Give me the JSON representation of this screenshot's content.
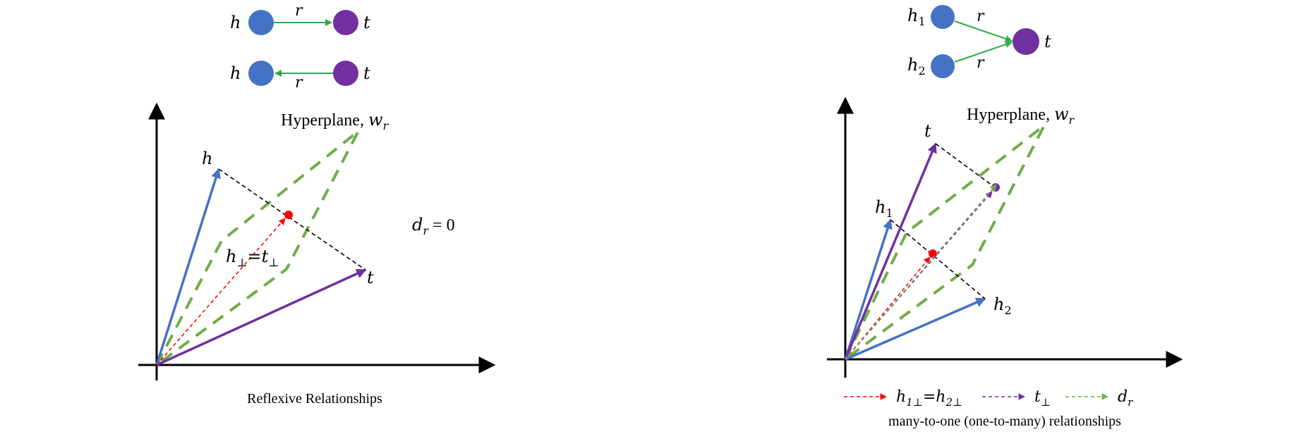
{
  "colors": {
    "blue_node": "#4472C4",
    "purple_node": "#7030A0",
    "green": "#4CAF50",
    "green_dash": "#70AD47",
    "blue_vec": "#4472C4",
    "purple_vec": "#7030A0",
    "red": "#FF0000",
    "black": "#000000"
  },
  "left": {
    "graph_top": {
      "head": "h",
      "rel": "r",
      "tail": "t"
    },
    "graph_bottom": {
      "head": "h",
      "rel": "r",
      "tail": "t"
    },
    "hyperplane_label": "Hyperplane, ",
    "hyperplane_sym": "w",
    "hyperplane_sub": "r",
    "vec_h": "h",
    "vec_t": "t",
    "proj_label": "h",
    "proj_label_sub": "⊥",
    "proj_eq": "=",
    "proj_label2": "t",
    "proj_label2_sub": "⊥",
    "dr_label": "d",
    "dr_sub": "r",
    "dr_value": " = 0",
    "caption": "Reflexive Relationships"
  },
  "right": {
    "graph": {
      "head1": "h",
      "head1_sub": "1",
      "head2": "h",
      "head2_sub": "2",
      "rel1": "r",
      "rel2": "r",
      "tail": "t"
    },
    "hyperplane_label": "Hyperplane, ",
    "hyperplane_sym": "w",
    "hyperplane_sub": "r",
    "vec_t": "t",
    "vec_h1": "h",
    "vec_h1_sub": "1",
    "vec_h2": "h",
    "vec_h2_sub": "2",
    "legend": [
      {
        "text": "h",
        "sub": "1⊥",
        "eq": "=",
        "text2": "h",
        "sub2": "2⊥",
        "color": "#FF0000"
      },
      {
        "text": "t",
        "sub": "⊥",
        "color": "#7030A0"
      },
      {
        "text": "d",
        "sub": "r",
        "color": "#70AD47"
      }
    ],
    "caption": "many-to-one (one-to-many) relationships"
  }
}
